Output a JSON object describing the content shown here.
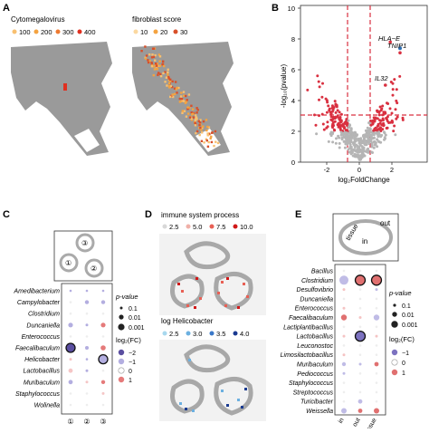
{
  "panel_labels": [
    "A",
    "B",
    "C",
    "D",
    "E"
  ],
  "panel_a": {
    "legend1_title": "Cytomegalovirus",
    "legend1_items": [
      "100",
      "200",
      "300",
      "400"
    ],
    "legend2_title": "fibroblast score",
    "legend2_items": [
      "10",
      "20",
      "30"
    ],
    "colors": {
      "tissue": "#9a9a9a",
      "orange": "#f4a340",
      "red": "#e03020"
    }
  },
  "panel_b": {
    "xlabel": "log₂FoldChange",
    "ylabel": "-log₁₀(pvalue)",
    "x_ticks": [
      "-2",
      "0",
      "2"
    ],
    "y_ticks": [
      "0",
      "2",
      "4",
      "6",
      "8",
      "10"
    ],
    "gene_labels": [
      "HLA−E",
      "TNIP1",
      "IL32"
    ],
    "colors": {
      "ns": "#b5b5b5",
      "sig": "#d93040",
      "blue": "#2b6cb0"
    }
  },
  "panel_c": {
    "region_labels": [
      "①",
      "②",
      "③"
    ],
    "taxa": [
      "Amedibacterium",
      "Campylobacter",
      "Clostridium",
      "Duncaniella",
      "Enterococcus",
      "Faecalibaculum",
      "Helicobacter",
      "Lactobacillus",
      "Muribaculum",
      "Staphylococcus",
      "Wolinella"
    ],
    "x_labels": [
      "①",
      "②",
      "③"
    ],
    "legend_p_title": "p-value",
    "legend_p_items": [
      "0.1",
      "0.01",
      "0.001"
    ],
    "legend_fc_title": "log₂(FC)",
    "legend_fc_items": [
      "−2",
      "−1",
      "0",
      "1"
    ]
  },
  "panel_d": {
    "legend1_title": "immune system process",
    "legend1_items": [
      "2.5",
      "5.0",
      "7.5",
      "10.0"
    ],
    "legend2_title": "log Helicobacter",
    "legend2_items": [
      "2.5",
      "3.0",
      "3.5",
      "4.0"
    ]
  },
  "panel_e": {
    "region_labels": {
      "tissue": "tissue",
      "in": "in",
      "out": "out"
    },
    "taxa": [
      "Bacillus",
      "Clostridium",
      "Desulfovibrio",
      "Duncaniella",
      "Enterococcus",
      "Faecalibaculum",
      "Lactiplantibacillus",
      "Lactobacillus",
      "Leuconostoc",
      "Limosilactobacillus",
      "Muribaculum",
      "Pediococcus",
      "Staphylococcus",
      "Streptococcus",
      "Turicibacter",
      "Weissella"
    ],
    "x_labels": [
      "in",
      "out",
      "tissue"
    ],
    "legend_p_title": "p-value",
    "legend_p_items": [
      "0.1",
      "0.01",
      "0.001"
    ],
    "legend_fc_title": "log₂(FC)",
    "legend_fc_items": [
      "−1",
      "0",
      "1"
    ]
  }
}
